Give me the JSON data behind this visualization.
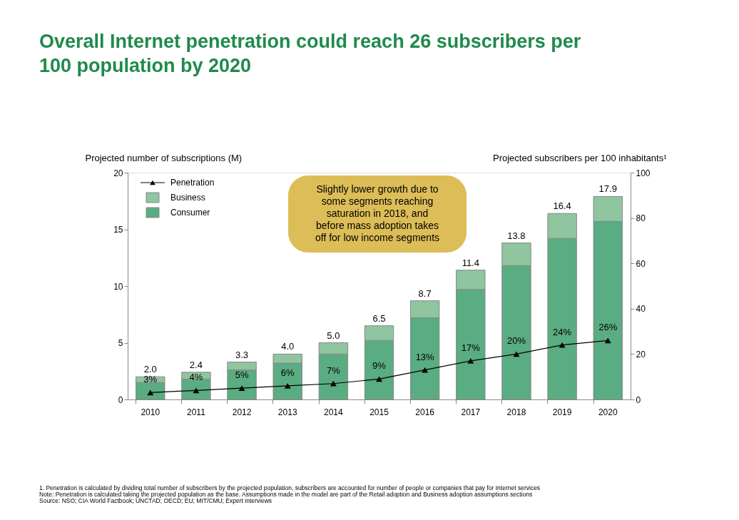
{
  "chart_data": {
    "type": "bar",
    "stacked": true,
    "title": "Overall Internet penetration could reach 26 subscribers per 100 population by 2020",
    "ylabel": "Projected number of subscriptions (M)",
    "y2label": "Projected subscribers per 100 inhabitants¹",
    "categories": [
      "2010",
      "2011",
      "2012",
      "2013",
      "2014",
      "2015",
      "2016",
      "2017",
      "2018",
      "2019",
      "2020"
    ],
    "series": [
      {
        "name": "Consumer",
        "color": "#5aac82",
        "values": [
          1.5,
          1.8,
          2.6,
          3.2,
          4.0,
          5.2,
          7.2,
          9.7,
          11.8,
          14.2,
          15.7
        ]
      },
      {
        "name": "Business",
        "color": "#8fc59f",
        "values": [
          0.5,
          0.6,
          0.7,
          0.8,
          1.0,
          1.3,
          1.5,
          1.7,
          2.0,
          2.2,
          2.2
        ]
      },
      {
        "name": "Penetration",
        "type": "line",
        "axis": "y2",
        "color": "#000000",
        "marker": "triangle",
        "values": [
          3,
          4,
          5,
          6,
          7,
          9,
          13,
          17,
          20,
          24,
          26
        ],
        "value_labels": [
          "3%",
          "4%",
          "5%",
          "6%",
          "7%",
          "9%",
          "13%",
          "17%",
          "20%",
          "24%",
          "26%"
        ]
      }
    ],
    "totals": [
      "2.0",
      "2.4",
      "3.3",
      "4.0",
      "5.0",
      "6.5",
      "8.7",
      "11.4",
      "13.8",
      "16.4",
      "17.9"
    ],
    "ylim": [
      0,
      20
    ],
    "yticks": [
      0,
      5,
      10,
      15,
      20
    ],
    "y2lim": [
      0,
      100
    ],
    "y2ticks": [
      0,
      20,
      40,
      60,
      80,
      100
    ],
    "grid": false,
    "legend": "top left",
    "annotations": [
      "Slightly lower growth due to some segments reaching saturation in 2018, and before mass adoption takes off for low income segments",
      "1. Penetration is calculated by dividing total number of subscribers by the projected population, subscribers are accounted for number of people or companies that pay for Internet services",
      "Note: Penetration is calculated taking the projected population as the base. Assumptions made in the model are part of the Retail adoption and Business adoption assumptions sections",
      "Source: NSO; CIA World Factbook; UNCTAD; OECD; EU; MIT/CMU; Expert interviews"
    ]
  }
}
